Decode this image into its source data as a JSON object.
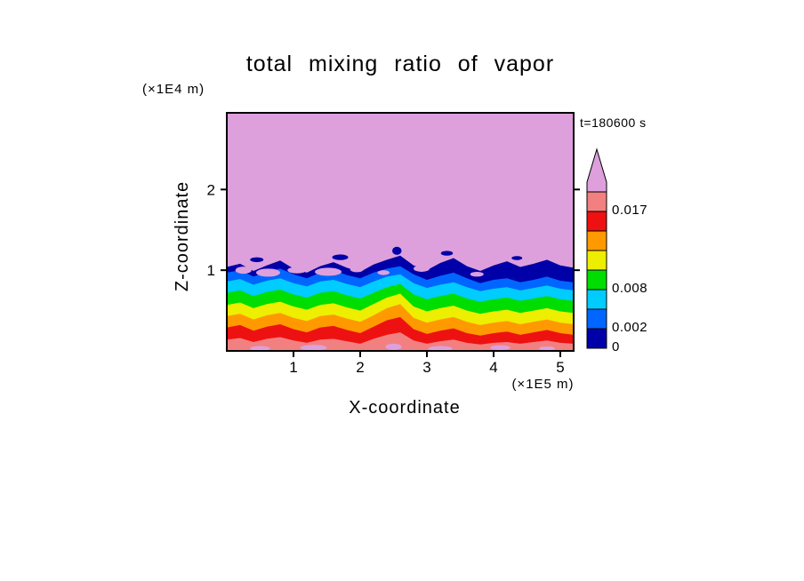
{
  "chart_data": {
    "type": "contour-fill",
    "title": "total mixing ratio of vapor",
    "xlabel": "X-coordinate",
    "ylabel": "Z-coordinate",
    "x_unit_label": "(×1E5 m)",
    "y_unit_label": "(×1E4 m)",
    "time_label": "t=180600 s",
    "xlim": [
      0,
      5.2
    ],
    "ylim": [
      0,
      2.95
    ],
    "x_ticks": [
      1,
      2,
      3,
      4,
      5
    ],
    "y_ticks": [
      1,
      2
    ],
    "grid": false,
    "legend_position": "right-colorbar",
    "background_value_color": "#DDA0DD",
    "frame_color": "#000000",
    "x_samples": [
      0,
      0.2,
      0.4,
      0.6,
      0.8,
      1.0,
      1.2,
      1.4,
      1.6,
      1.8,
      2.0,
      2.2,
      2.4,
      2.6,
      2.8,
      3.0,
      3.2,
      3.4,
      3.6,
      3.8,
      4.0,
      4.2,
      4.4,
      4.6,
      4.8,
      5.0,
      5.2
    ],
    "bands": [
      {
        "name": "darkblue",
        "color": "#0000A8",
        "top": [
          1.04,
          1.08,
          0.99,
          1.06,
          1.12,
          1.02,
          0.97,
          1.05,
          1.1,
          1.03,
          0.98,
          1.07,
          1.13,
          1.18,
          1.06,
          1.0,
          1.09,
          1.15,
          1.05,
          0.99,
          1.06,
          1.11,
          1.04,
          1.08,
          1.13,
          1.06,
          1.03
        ]
      },
      {
        "name": "blue",
        "color": "#0066FF",
        "top": [
          0.97,
          1.0,
          0.92,
          0.98,
          1.02,
          0.95,
          0.9,
          0.97,
          1.0,
          0.94,
          0.9,
          0.97,
          1.02,
          1.05,
          0.95,
          0.88,
          0.93,
          0.97,
          0.9,
          0.84,
          0.88,
          0.9,
          0.85,
          0.88,
          0.92,
          0.87,
          0.85
        ]
      },
      {
        "name": "cyan",
        "color": "#00CCFF",
        "top": [
          0.86,
          0.89,
          0.82,
          0.87,
          0.9,
          0.84,
          0.8,
          0.86,
          0.88,
          0.83,
          0.79,
          0.86,
          0.92,
          0.95,
          0.84,
          0.78,
          0.82,
          0.85,
          0.79,
          0.74,
          0.77,
          0.79,
          0.75,
          0.78,
          0.81,
          0.77,
          0.75
        ]
      },
      {
        "name": "green",
        "color": "#00DD00",
        "top": [
          0.72,
          0.75,
          0.68,
          0.73,
          0.76,
          0.7,
          0.66,
          0.72,
          0.74,
          0.69,
          0.65,
          0.72,
          0.79,
          0.83,
          0.7,
          0.64,
          0.68,
          0.71,
          0.65,
          0.61,
          0.64,
          0.66,
          0.62,
          0.65,
          0.68,
          0.64,
          0.62
        ]
      },
      {
        "name": "yellow",
        "color": "#EEEE00",
        "top": [
          0.57,
          0.6,
          0.53,
          0.58,
          0.61,
          0.55,
          0.51,
          0.57,
          0.59,
          0.54,
          0.5,
          0.58,
          0.66,
          0.71,
          0.55,
          0.49,
          0.53,
          0.56,
          0.5,
          0.46,
          0.49,
          0.51,
          0.47,
          0.5,
          0.53,
          0.49,
          0.47
        ]
      },
      {
        "name": "orange",
        "color": "#FF9900",
        "top": [
          0.43,
          0.46,
          0.39,
          0.44,
          0.47,
          0.41,
          0.37,
          0.43,
          0.45,
          0.4,
          0.36,
          0.44,
          0.53,
          0.58,
          0.41,
          0.35,
          0.39,
          0.42,
          0.36,
          0.32,
          0.35,
          0.37,
          0.33,
          0.36,
          0.39,
          0.35,
          0.33
        ]
      },
      {
        "name": "red",
        "color": "#EE1111",
        "top": [
          0.29,
          0.32,
          0.25,
          0.3,
          0.33,
          0.27,
          0.23,
          0.29,
          0.31,
          0.26,
          0.22,
          0.3,
          0.38,
          0.42,
          0.27,
          0.21,
          0.25,
          0.28,
          0.22,
          0.19,
          0.22,
          0.24,
          0.2,
          0.23,
          0.26,
          0.22,
          0.2
        ]
      },
      {
        "name": "pink",
        "color": "#F28080",
        "top": [
          0.14,
          0.16,
          0.11,
          0.15,
          0.17,
          0.13,
          0.1,
          0.14,
          0.15,
          0.12,
          0.09,
          0.15,
          0.2,
          0.23,
          0.13,
          0.09,
          0.12,
          0.14,
          0.1,
          0.08,
          0.1,
          0.11,
          0.09,
          0.11,
          0.13,
          0.1,
          0.09
        ]
      }
    ],
    "plum_patches": [
      [
        0.25,
        1.0,
        0.12,
        0.045
      ],
      [
        0.62,
        0.97,
        0.18,
        0.05
      ],
      [
        1.05,
        1.0,
        0.14,
        0.04
      ],
      [
        1.52,
        0.98,
        0.2,
        0.05
      ],
      [
        1.95,
        1.01,
        0.1,
        0.035
      ],
      [
        2.35,
        0.97,
        0.09,
        0.03
      ],
      [
        2.92,
        1.02,
        0.12,
        0.04
      ],
      [
        3.75,
        0.95,
        0.1,
        0.03
      ]
    ],
    "navy_patches": [
      [
        0.45,
        1.13,
        0.1,
        0.03
      ],
      [
        1.7,
        1.16,
        0.12,
        0.035
      ],
      [
        2.55,
        1.24,
        0.07,
        0.05
      ],
      [
        3.3,
        1.21,
        0.09,
        0.03
      ],
      [
        4.35,
        1.15,
        0.08,
        0.025
      ]
    ],
    "bottom_specks": [
      [
        0.5,
        0.03,
        0.15,
        0.03
      ],
      [
        1.3,
        0.04,
        0.2,
        0.035
      ],
      [
        2.5,
        0.05,
        0.12,
        0.04
      ],
      [
        3.2,
        0.03,
        0.18,
        0.03
      ],
      [
        4.1,
        0.04,
        0.15,
        0.03
      ],
      [
        4.8,
        0.03,
        0.12,
        0.025
      ]
    ],
    "colorbar": {
      "segments": [
        {
          "color": "#0000A8"
        },
        {
          "color": "#0066FF"
        },
        {
          "color": "#00CCFF"
        },
        {
          "color": "#00DD00"
        },
        {
          "color": "#EEEE00"
        },
        {
          "color": "#FF9900"
        },
        {
          "color": "#EE1111"
        },
        {
          "color": "#F28080"
        },
        {
          "color": "#DDA0DD",
          "arrow": true
        }
      ],
      "labels": [
        {
          "text": "0",
          "boundary": 0
        },
        {
          "text": "0.002",
          "boundary": 1
        },
        {
          "text": "0.008",
          "boundary": 3
        },
        {
          "text": "0.017",
          "boundary": 7
        }
      ]
    }
  }
}
